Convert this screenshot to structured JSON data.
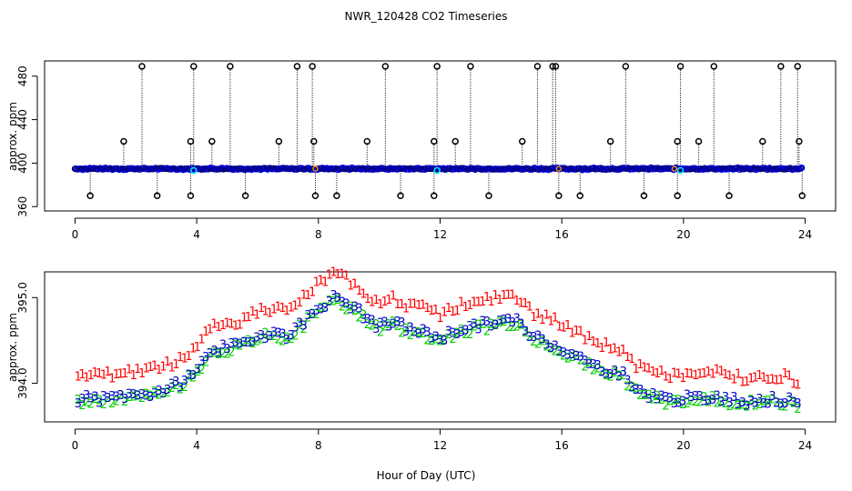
{
  "chart_data": [
    {
      "type": "scatter",
      "title": "NWR_120428  CO2 Timeseries",
      "xlabel": "",
      "ylabel": "approx. ppm",
      "xlim": [
        -1,
        25
      ],
      "ylim": [
        356,
        494
      ],
      "x_ticks": [
        "0",
        "4",
        "8",
        "12",
        "16",
        "20",
        "24"
      ],
      "y_ticks": [
        "360",
        "400",
        "440",
        "480"
      ],
      "y_tick_values": [
        360,
        400,
        440,
        480
      ],
      "baseline": 394.8,
      "spikes_high": [
        1.6,
        2.2,
        3.8,
        3.9,
        4.5,
        5.1,
        6.7,
        7.3,
        7.8,
        7.85,
        9.6,
        10.2,
        11.8,
        11.9,
        12.5,
        13.0,
        14.7,
        15.2,
        15.7,
        15.8,
        17.6,
        18.1,
        19.8,
        19.9,
        20.5,
        21.0,
        22.6,
        23.2,
        23.75,
        23.8
      ],
      "spikes_high_values": [
        420,
        489,
        420,
        489,
        420,
        489,
        420,
        489,
        489,
        420,
        420,
        489,
        420,
        489,
        420,
        489,
        420,
        489,
        489,
        489,
        420,
        489,
        420,
        489,
        420,
        489,
        420,
        489,
        489,
        420
      ],
      "spikes_low": [
        0.5,
        2.7,
        3.8,
        5.6,
        7.9,
        8.6,
        10.7,
        11.8,
        13.6,
        15.9,
        16.6,
        18.7,
        19.8,
        21.5,
        23.9
      ],
      "spikes_low_value": 370,
      "series": [
        {
          "name": "black-o",
          "color": "#000000"
        },
        {
          "name": "blue",
          "color": "#0000ff"
        },
        {
          "name": "cyan",
          "color": "#00e5ee"
        },
        {
          "name": "orange",
          "color": "#ff9900"
        }
      ]
    },
    {
      "type": "scatter",
      "title": "",
      "xlabel": "Hour of Day (UTC)",
      "ylabel": "approx. ppm",
      "xlim": [
        -1,
        25
      ],
      "ylim": [
        393.55,
        395.3
      ],
      "x_ticks": [
        "0",
        "4",
        "8",
        "12",
        "16",
        "20",
        "24"
      ],
      "y_ticks": [
        "394.0",
        "395.0"
      ],
      "y_tick_values": [
        394.0,
        395.0
      ],
      "profile_hours": [
        0,
        0.5,
        1,
        1.5,
        2,
        2.5,
        3,
        3.5,
        4,
        4.5,
        5,
        5.5,
        6,
        6.5,
        7,
        7.5,
        8,
        8.5,
        9,
        9.5,
        10,
        10.5,
        11,
        11.5,
        12,
        12.5,
        13,
        13.5,
        14,
        14.5,
        15,
        15.5,
        16,
        16.5,
        17,
        17.5,
        18,
        18.5,
        19,
        19.5,
        20,
        20.5,
        21,
        21.5,
        22,
        22.5,
        23,
        23.5,
        23.8
      ],
      "profile_values": [
        393.8,
        393.82,
        393.8,
        393.85,
        393.85,
        393.88,
        393.92,
        394.0,
        394.15,
        394.4,
        394.4,
        394.45,
        394.55,
        394.58,
        394.55,
        394.7,
        394.88,
        394.98,
        394.92,
        394.78,
        394.65,
        394.7,
        394.62,
        394.58,
        394.52,
        394.6,
        394.65,
        394.68,
        394.72,
        394.72,
        394.55,
        394.48,
        394.4,
        394.3,
        394.2,
        394.15,
        394.1,
        393.9,
        393.85,
        393.8,
        393.82,
        393.8,
        393.85,
        393.8,
        393.78,
        393.8,
        393.8,
        393.78,
        393.72
      ],
      "series": [
        {
          "name": "1",
          "label": "1",
          "color": "#ff0000",
          "offset": 0.28
        },
        {
          "name": "2",
          "label": "2",
          "color": "#00cc00",
          "offset": -0.03
        },
        {
          "name": "3",
          "label": "3",
          "color": "#0000cc",
          "offset": 0.0
        }
      ]
    }
  ]
}
